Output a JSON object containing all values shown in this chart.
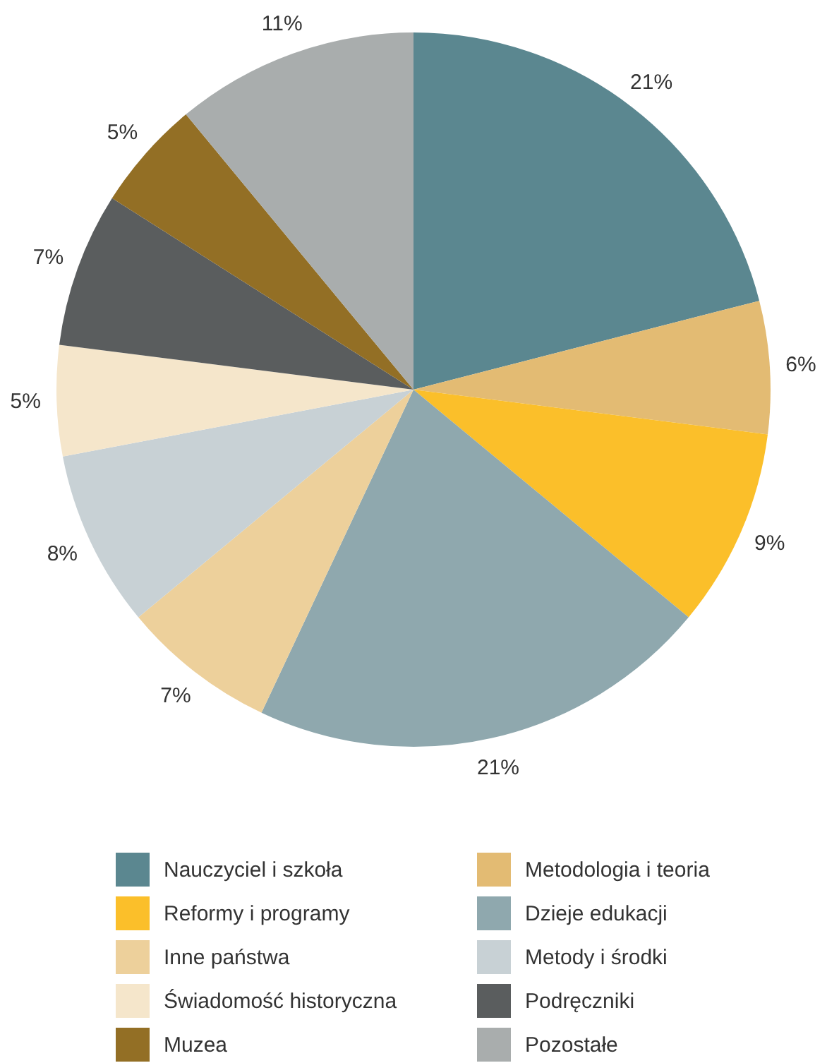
{
  "chart_data": {
    "type": "pie",
    "legend": "bottom",
    "categories": [
      "Nauczyciel i szkoła",
      "Metodologia i teoria",
      "Reformy i programy",
      "Dzieje edukacji",
      "Inne państwa",
      "Metody i środki",
      "Świadomość historyczna",
      "Podręczniki",
      "Muzea",
      "Pozostałe"
    ],
    "values": [
      21,
      6,
      9,
      21,
      7,
      8,
      5,
      7,
      5,
      11
    ],
    "value_labels": [
      "21%",
      "6%",
      "9%",
      "21%",
      "7%",
      "8%",
      "5%",
      "7%",
      "5%",
      "11%"
    ],
    "colors": [
      "#5b8790",
      "#e3bb73",
      "#fbbf2a",
      "#8fa8ae",
      "#edd09b",
      "#c8d1d5",
      "#f5e6cb",
      "#5a5d5e",
      "#936f25",
      "#a9adad"
    ]
  }
}
